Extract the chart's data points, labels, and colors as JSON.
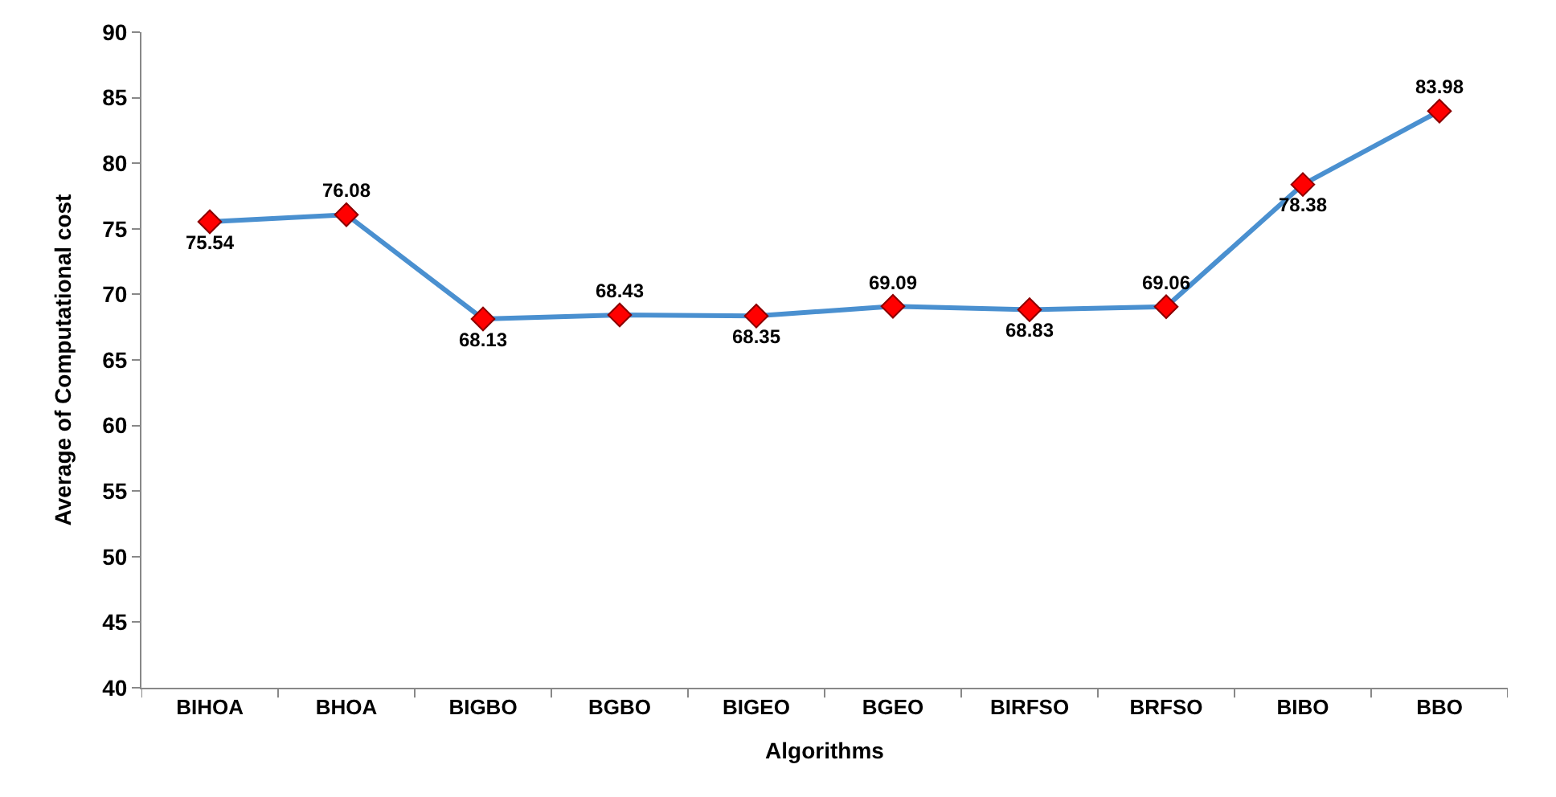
{
  "chart_data": {
    "type": "line",
    "xlabel": "Algorithms",
    "ylabel": "Average of Computational cost",
    "categories": [
      "BIHOA",
      "BHOA",
      "BIGBO",
      "BGBO",
      "BIGEO",
      "BGEO",
      "BIRFSO",
      "BRFSO",
      "BIBO",
      "BBO"
    ],
    "series": [
      {
        "color": "#4a90d0",
        "colors": [
          "#ff0000",
          "#ff0000",
          "#ff0000",
          "#ff0000",
          "#ff0000",
          "#ff0000",
          "#ff0000",
          "#ff0000",
          "#ff0000",
          "#ff0000"
        ],
        "values": [
          75.54,
          76.08,
          68.13,
          68.43,
          68.35,
          69.09,
          68.83,
          69.06,
          78.38,
          83.98
        ]
      }
    ],
    "ylim": [
      40,
      90
    ],
    "yticks": [
      40,
      45,
      50,
      55,
      60,
      65,
      70,
      75,
      80,
      85,
      90
    ],
    "data_labels": true,
    "marker": "diamond",
    "line_style": "solid"
  }
}
